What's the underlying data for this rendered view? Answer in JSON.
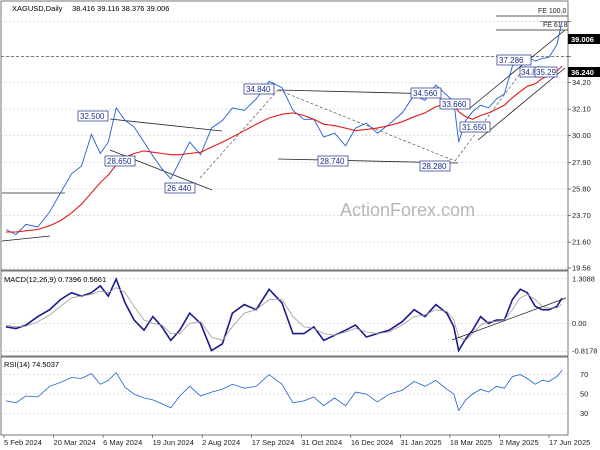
{
  "chart_data": [
    {
      "type": "line",
      "symbol_label": "XAGUSD,Daily",
      "ohlc_text": "38.416 39.116 38.376 39.006",
      "price_axis_ticks": [
        19.56,
        21.6,
        23.7,
        25.8,
        27.9,
        30.0,
        32.1,
        34.2,
        36.24,
        39.006
      ],
      "ylim": [
        19.56,
        40.4
      ],
      "last_price_label": "39.006",
      "level_price_label": "36.240",
      "time_axis_labels": [
        "5 Feb 2024",
        "20 Mar 2024",
        "6 May 2024",
        "19 Jun 2024",
        "2 Aug 2024",
        "17 Sep 2024",
        "31 Oct 2024",
        "16 Dec 2024",
        "31 Jan 2025",
        "18 Mar 2025",
        "2 May 2025",
        "17 Jun 2025"
      ],
      "fibo_labels": [
        "FE 100.0",
        "FE 61.8"
      ],
      "annotations": [
        "32.500",
        "28.650",
        "26.440",
        "34.840",
        "28.740",
        "34.560",
        "33.660",
        "31.650",
        "28.280",
        "37.286",
        "34.86",
        "35.29"
      ],
      "x": [
        0,
        10,
        20,
        32,
        44,
        55,
        66,
        76,
        86,
        95,
        103,
        111,
        120,
        129,
        139,
        148,
        157,
        166,
        175,
        185,
        196,
        207,
        218,
        228,
        240,
        252,
        265,
        278,
        289,
        300,
        310,
        320,
        331,
        342,
        352,
        363,
        374,
        386,
        399,
        411,
        422,
        433,
        444,
        451,
        456,
        463,
        470,
        478,
        486,
        494,
        502,
        510,
        518,
        525,
        533,
        540,
        547,
        555,
        560
      ],
      "series": [
        {
          "values": [
            22.6,
            22.2,
            23.0,
            22.8,
            24.0,
            25.5,
            27.0,
            27.6,
            30.1,
            28.6,
            29.5,
            32.2,
            31.2,
            30.7,
            29.5,
            28.4,
            27.4,
            26.6,
            28.0,
            29.5,
            28.5,
            30.6,
            31.2,
            32.2,
            32.0,
            32.9,
            34.3,
            33.8,
            32.0,
            31.3,
            31.3,
            29.9,
            30.2,
            29.2,
            30.6,
            31.0,
            30.2,
            30.9,
            31.8,
            33.2,
            32.8,
            34.0,
            33.2,
            32.7,
            29.5,
            31.2,
            31.9,
            32.4,
            32.2,
            32.9,
            33.3,
            35.5,
            36.3,
            36.2,
            35.9,
            36.1,
            36.2,
            37.2,
            39.0
          ]
        },
        {
          "values": [
            22.4,
            22.4,
            22.5,
            22.6,
            22.9,
            23.3,
            23.9,
            24.6,
            25.5,
            26.3,
            26.9,
            27.7,
            28.3,
            28.6,
            28.8,
            28.7,
            28.6,
            28.5,
            28.5,
            28.6,
            28.7,
            29.1,
            29.5,
            29.9,
            30.4,
            30.9,
            31.4,
            31.7,
            31.8,
            31.6,
            31.3,
            30.9,
            30.8,
            30.6,
            30.4,
            30.5,
            30.6,
            30.8,
            31.1,
            31.5,
            31.8,
            32.3,
            32.5,
            32.4,
            31.9,
            31.5,
            31.3,
            31.6,
            31.8,
            32.1,
            32.4,
            33.0,
            33.5,
            33.9,
            34.1,
            34.5,
            34.8,
            35.1,
            35.5
          ]
        }
      ]
    },
    {
      "type": "line",
      "label": "MACD(12,26,9) 0.7396 0.5661",
      "ticks": [
        1.3088,
        0.0,
        -0.8178
      ],
      "ylim": [
        -0.9,
        1.45
      ],
      "x": [
        0,
        10,
        20,
        32,
        44,
        55,
        66,
        76,
        86,
        95,
        103,
        111,
        120,
        129,
        139,
        148,
        157,
        166,
        175,
        185,
        196,
        207,
        218,
        228,
        240,
        252,
        265,
        278,
        289,
        300,
        310,
        320,
        331,
        342,
        352,
        363,
        374,
        386,
        399,
        411,
        422,
        433,
        444,
        451,
        456,
        463,
        470,
        478,
        486,
        494,
        502,
        510,
        518,
        525,
        533,
        540,
        547,
        555,
        560
      ],
      "series": [
        {
          "values": [
            -0.1,
            -0.15,
            -0.05,
            0.2,
            0.4,
            0.7,
            0.9,
            0.8,
            0.9,
            1.1,
            0.8,
            1.3,
            0.6,
            0.1,
            -0.2,
            0.2,
            -0.1,
            -0.5,
            -0.2,
            0.3,
            0.0,
            -0.8,
            -0.6,
            0.3,
            0.55,
            0.4,
            1.0,
            0.6,
            -0.3,
            -0.3,
            -0.1,
            -0.5,
            -0.35,
            -0.2,
            -0.05,
            -0.4,
            -0.3,
            -0.2,
            0.05,
            0.4,
            0.2,
            0.55,
            0.3,
            -0.1,
            -0.8,
            -0.45,
            -0.2,
            0.2,
            0.0,
            0.1,
            0.1,
            0.7,
            1.0,
            0.9,
            0.5,
            0.4,
            0.4,
            0.5,
            0.74
          ]
        },
        {
          "values": [
            -0.05,
            -0.1,
            -0.08,
            0.05,
            0.25,
            0.5,
            0.75,
            0.8,
            0.85,
            0.95,
            0.9,
            1.05,
            0.9,
            0.5,
            0.1,
            0.0,
            -0.05,
            -0.3,
            -0.3,
            0.0,
            0.05,
            -0.4,
            -0.5,
            -0.1,
            0.3,
            0.4,
            0.7,
            0.7,
            0.2,
            -0.1,
            -0.15,
            -0.3,
            -0.35,
            -0.25,
            -0.15,
            -0.25,
            -0.3,
            -0.25,
            -0.05,
            0.2,
            0.25,
            0.4,
            0.35,
            0.1,
            -0.4,
            -0.5,
            -0.3,
            -0.05,
            0.05,
            0.05,
            0.1,
            0.4,
            0.75,
            0.85,
            0.7,
            0.5,
            0.45,
            0.45,
            0.57
          ]
        }
      ]
    },
    {
      "type": "line",
      "label": "RSI(14) 74.5037",
      "ticks": [
        70,
        50,
        30
      ],
      "ylim": [
        10,
        85
      ],
      "x": [
        0,
        10,
        20,
        32,
        44,
        55,
        66,
        76,
        86,
        95,
        103,
        111,
        120,
        129,
        139,
        148,
        157,
        166,
        175,
        185,
        196,
        207,
        218,
        228,
        240,
        252,
        265,
        278,
        289,
        300,
        310,
        320,
        331,
        342,
        352,
        363,
        374,
        386,
        399,
        411,
        422,
        433,
        444,
        451,
        456,
        463,
        470,
        478,
        486,
        494,
        502,
        510,
        518,
        525,
        533,
        540,
        547,
        555,
        560
      ],
      "series": [
        {
          "values": [
            43,
            41,
            48,
            47,
            58,
            62,
            67,
            66,
            71,
            60,
            64,
            72,
            57,
            50,
            46,
            44,
            40,
            36,
            48,
            58,
            48,
            52,
            55,
            60,
            56,
            58,
            70,
            60,
            41,
            43,
            47,
            38,
            46,
            38,
            52,
            50,
            42,
            50,
            54,
            63,
            58,
            64,
            55,
            50,
            33,
            44,
            50,
            55,
            52,
            58,
            56,
            68,
            70,
            66,
            60,
            64,
            63,
            68,
            74.5
          ]
        }
      ]
    }
  ],
  "watermark": "ActionForex.com"
}
